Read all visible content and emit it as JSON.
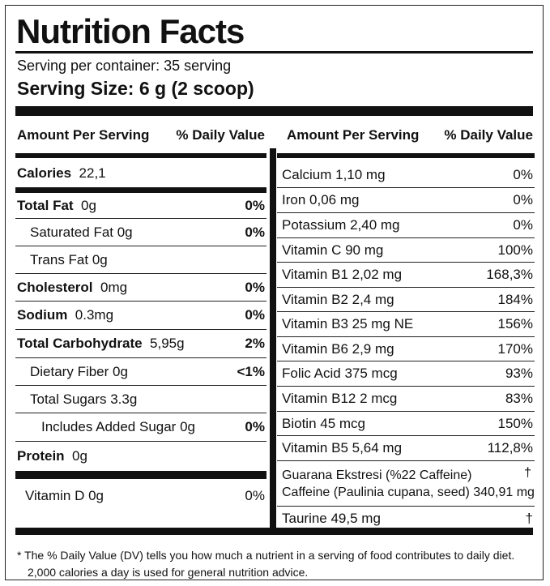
{
  "title": "Nutrition Facts",
  "servings_per_container": "Serving per container: 35 serving",
  "serving_size": "Serving Size: 6 g (2 scoop)",
  "header": {
    "amount": "Amount Per Serving",
    "dv": "% Daily Value"
  },
  "left_rows": [
    {
      "name": "Calories",
      "amount": "22,1",
      "dv": ""
    },
    {
      "name": "Total Fat",
      "amount": "0g",
      "dv": "0%"
    },
    {
      "name": "",
      "amount": "Saturated Fat  0g",
      "dv": "0%"
    },
    {
      "name": "",
      "amount": "Trans Fat  0g",
      "dv": ""
    },
    {
      "name": "Cholesterol",
      "amount": "0mg",
      "dv": "0%"
    },
    {
      "name": "Sodium",
      "amount": "0.3mg",
      "dv": "0%"
    },
    {
      "name": "Total Carbohydrate",
      "amount": "5,95g",
      "dv": "2%"
    },
    {
      "name": "",
      "amount": "Dietary Fiber 0g",
      "dv": "<1%"
    },
    {
      "name": "",
      "amount": "Total Sugars 3.3g",
      "dv": ""
    },
    {
      "name": "",
      "amount": "Includes Added Sugar 0g",
      "dv": "0%"
    },
    {
      "name": "Protein",
      "amount": "0g",
      "dv": ""
    },
    {
      "name": "",
      "amount": "Vitamin D 0g",
      "dv": "0%"
    }
  ],
  "right_rows": [
    {
      "name": "Calcium 1,10 mg",
      "dv": "0%"
    },
    {
      "name": "Iron 0,06 mg",
      "dv": "0%"
    },
    {
      "name": "Potassium 2,40 mg",
      "dv": "0%"
    },
    {
      "name": "Vitamin C 90 mg",
      "dv": "100%"
    },
    {
      "name": "Vitamin B1  2,02 mg",
      "dv": "168,3%"
    },
    {
      "name": "Vitamin B2  2,4 mg",
      "dv": "184%"
    },
    {
      "name": "Vitamin B3  25 mg NE",
      "dv": "156%"
    },
    {
      "name": "Vitamin B6  2,9 mg",
      "dv": "170%"
    },
    {
      "name": "Folic Acid 375 mcg",
      "dv": "93%"
    },
    {
      "name": "Vitamin B12  2 mcg",
      "dv": "83%"
    },
    {
      "name": "Biotin 45 mcg",
      "dv": "150%"
    },
    {
      "name": "Vitamin B5  5,64 mg",
      "dv": "112,8%"
    },
    {
      "name": "Guarana Ekstresi (%22 Caffeine)",
      "name2": "Caffeine (Paulinia cupana, seed) 340,91 mg",
      "dv": "†"
    },
    {
      "name": "Taurine 49,5 mg",
      "dv": "†"
    }
  ],
  "footnote": {
    "line1": "*  The % Daily Value (DV) tells you how much a nutrient in a serving of food contributes to daily diet.",
    "line2": "2,000 calories a day is used for general nutrition advice."
  }
}
